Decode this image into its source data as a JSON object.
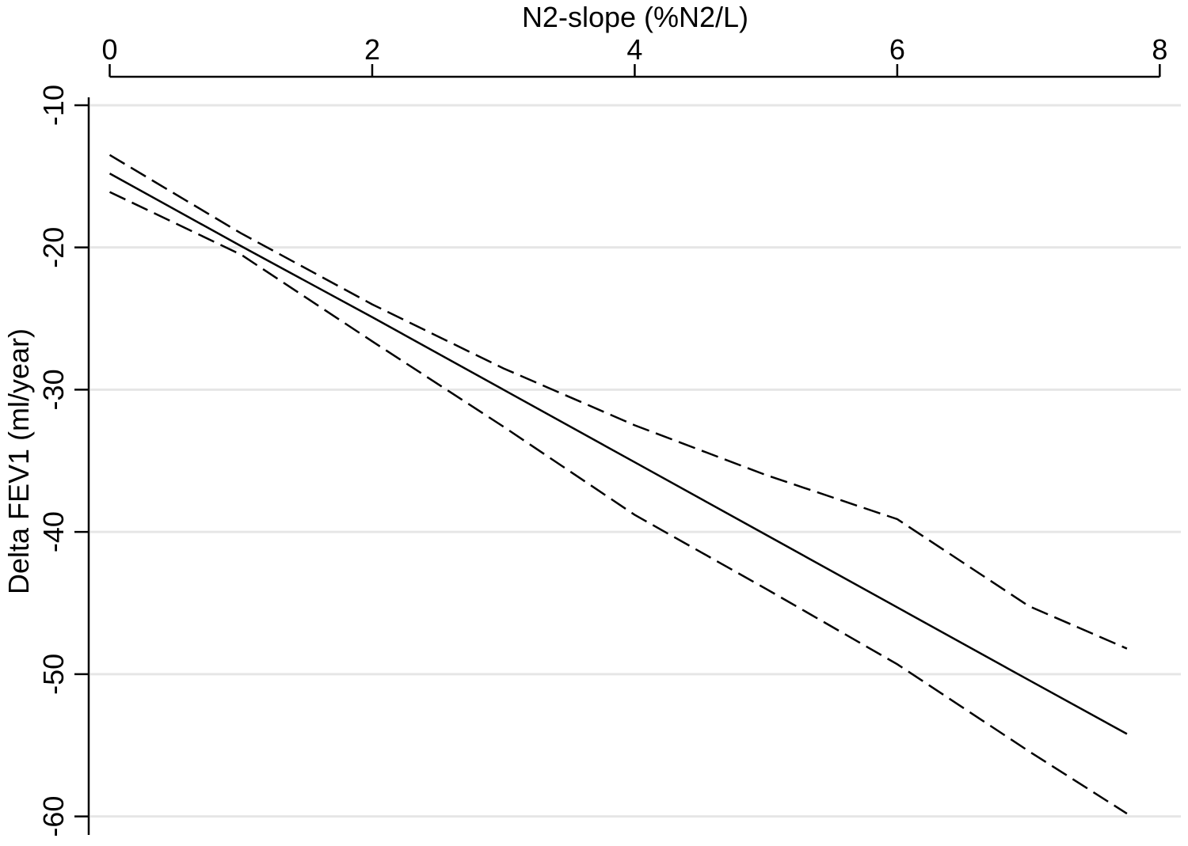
{
  "chart_data": {
    "type": "line",
    "x_label": "N2-slope (%N2/L)",
    "y_label": "Delta FEV1 (ml/year)",
    "x": [
      0,
      1,
      2,
      3,
      4,
      5,
      6,
      7,
      7.75
    ],
    "series": [
      {
        "color": "#000000",
        "style": "solid",
        "values": [
          -14.8,
          -19.9,
          -24.9,
          -30.0,
          -35.1,
          -40.2,
          -45.3,
          -50.4,
          -54.2
        ]
      },
      {
        "color": "#000000",
        "style": "dashed",
        "values": [
          -13.5,
          -19.0,
          -24.0,
          -28.5,
          -32.5,
          -36.0,
          -39.1,
          -45.2,
          -48.2
        ]
      },
      {
        "color": "#000000",
        "style": "dashed",
        "values": [
          -16.1,
          -20.5,
          -26.6,
          -32.6,
          -38.8,
          -44.0,
          -49.3,
          -55.4,
          -59.8
        ]
      }
    ],
    "xlim": [
      -0.16,
      8.01
    ],
    "ylim": [
      -8,
      -61.3
    ],
    "xticks": [
      0,
      2,
      4,
      6,
      8
    ],
    "yticks": [
      -10,
      -20,
      -30,
      -40,
      -50,
      -60
    ],
    "grid": true,
    "x_axis_position": "top"
  }
}
